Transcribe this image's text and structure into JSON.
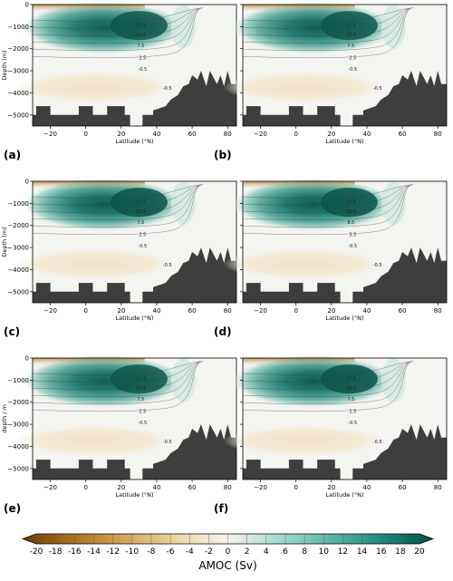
{
  "chart_data": {
    "type": "heatmap",
    "colorbar": {
      "label": "AMOC (Sv)",
      "ticks": [
        "-20",
        "-18",
        "-16",
        "-14",
        "-12",
        "-10",
        "-8",
        "-6",
        "-4",
        "-2",
        "0",
        "2",
        "4",
        "6",
        "8",
        "10",
        "12",
        "14",
        "16",
        "18",
        "20"
      ],
      "range": [
        -20,
        20
      ],
      "colors": {
        "negative": "#8c510a",
        "neutral": "#f5f5f5",
        "positive": "#01665e"
      }
    },
    "panels": [
      {
        "label": "(a)",
        "ylabel": "Depth (m)",
        "xlabel": "Latitude (°N)",
        "contour_labels": [
          "17.5",
          "12.5",
          "7.5",
          "2.5",
          "-0.5",
          "-0.5"
        ],
        "xticks": [
          "−20",
          "0",
          "20",
          "40",
          "60",
          "80"
        ],
        "yticks": [
          "0",
          "−1000",
          "−2000",
          "−3000",
          "−4000",
          "−5000"
        ],
        "xlim": [
          -30,
          85
        ],
        "ylim": [
          -5500,
          0
        ],
        "max_overturning_sv": 18
      },
      {
        "label": "(b)",
        "ylabel": "",
        "xlabel": "Latitude (°N)",
        "contour_labels": [
          "17.5",
          "12.5",
          "7.5",
          "2.5",
          "-0.5",
          "-0.5"
        ],
        "xticks": [
          "−20",
          "0",
          "20",
          "40",
          "60",
          "80"
        ],
        "yticks": [],
        "xlim": [
          -30,
          85
        ],
        "ylim": [
          -5500,
          0
        ],
        "max_overturning_sv": 18
      },
      {
        "label": "(c)",
        "ylabel": "Depth (m)",
        "xlabel": "Latitude (°N)",
        "contour_labels": [
          "17.5",
          "12.5",
          "7.5",
          "2.5",
          "-0.5",
          "-0.5"
        ],
        "xticks": [
          "−20",
          "0",
          "20",
          "40",
          "60",
          "80"
        ],
        "yticks": [
          "0",
          "−1000",
          "−2000",
          "−3000",
          "−4000",
          "−5000"
        ],
        "xlim": [
          -30,
          85
        ],
        "ylim": [
          -5500,
          0
        ],
        "max_overturning_sv": 19
      },
      {
        "label": "(d)",
        "ylabel": "",
        "xlabel": "Latitude (°N)",
        "contour_labels": [
          "17.5",
          "12.5",
          "8.5",
          "3.5",
          "-0.5",
          "-0.5"
        ],
        "xticks": [
          "−20",
          "0",
          "20",
          "40",
          "60",
          "80"
        ],
        "yticks": [],
        "xlim": [
          -30,
          85
        ],
        "ylim": [
          -5500,
          0
        ],
        "max_overturning_sv": 19
      },
      {
        "label": "(e)",
        "ylabel": "depth / m",
        "xlabel": "Latitude (°N)",
        "contour_labels": [
          "17.5",
          "12.5",
          "7.5",
          "2.5",
          "-0.5",
          "-0.5"
        ],
        "xticks": [
          "−20",
          "0",
          "20",
          "40",
          "60",
          "80"
        ],
        "yticks": [
          "0",
          "−1000",
          "−2000",
          "−3000",
          "−4000",
          "−5000"
        ],
        "xlim": [
          -30,
          85
        ],
        "ylim": [
          -5500,
          0
        ],
        "max_overturning_sv": 18
      },
      {
        "label": "(f)",
        "ylabel": "",
        "xlabel": "Latitude (°N)",
        "contour_labels": [
          "17.5",
          "13.5",
          "7.5",
          "1.5",
          "-0.5",
          "-0.5"
        ],
        "xticks": [
          "−20",
          "0",
          "20",
          "40",
          "60",
          "80"
        ],
        "yticks": [],
        "xlim": [
          -30,
          85
        ],
        "ylim": [
          -5500,
          0
        ],
        "max_overturning_sv": 19
      }
    ],
    "bathymetry": {
      "lat": [
        -30,
        -28,
        -28,
        -20,
        -20,
        -4,
        -4,
        4,
        4,
        12,
        12,
        22,
        22,
        25,
        25,
        32,
        32,
        38,
        38,
        45,
        48,
        52,
        55,
        58,
        60,
        63,
        65,
        68,
        70,
        72,
        74,
        76,
        78,
        80,
        82,
        85
      ],
      "depth": [
        -5000,
        -5000,
        -4600,
        -4600,
        -5000,
        -5000,
        -4600,
        -4600,
        -5000,
        -5000,
        -4600,
        -4600,
        -5000,
        -5000,
        -5500,
        -5500,
        -5000,
        -5000,
        -4800,
        -4600,
        -4300,
        -4100,
        -3700,
        -3600,
        -3200,
        -3400,
        -3000,
        -3700,
        -3000,
        -3300,
        -3600,
        -3200,
        -3700,
        -3000,
        -3600,
        -3600
      ]
    }
  }
}
